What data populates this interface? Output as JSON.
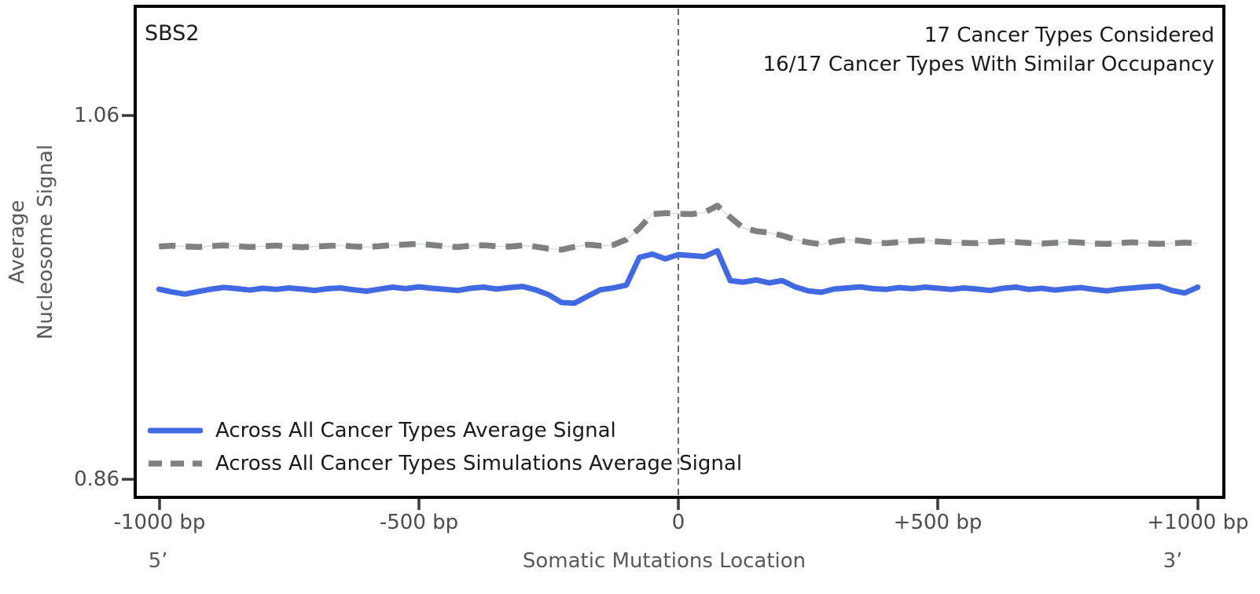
{
  "header": {
    "signature": "SBS2",
    "annotations": [
      "17 Cancer Types Considered",
      "16/17 Cancer Types With Similar Occupancy"
    ]
  },
  "axes": {
    "ylabel": "Average\nNucleosome Signal",
    "xlabel": "Somatic Mutations Location",
    "yticks": [
      "1.06",
      "0.86"
    ],
    "xticks": [
      "-1000 bp",
      "-500 bp",
      "0",
      "+500 bp",
      "+1000 bp"
    ],
    "five_prime": "5’",
    "three_prime": "3’"
  },
  "legend": {
    "items": [
      {
        "label": "Across All Cancer Types Average Signal",
        "color": "#4169E1",
        "dash": ""
      },
      {
        "label": "Across All Cancer Types Simulations Average Signal",
        "color": "#808080",
        "dash": "17 11"
      }
    ]
  },
  "colors": {
    "real_line": "#4169E1",
    "sims_line": "#808080",
    "sims_underline": "#d9e1d9",
    "vline": "#6b6b6b",
    "spine": "#000000",
    "tick": "#3a3a3a"
  },
  "chart_data": {
    "type": "line",
    "title": "SBS2",
    "xlabel": "Somatic Mutations Location",
    "ylabel": "Average Nucleosome Signal",
    "xlim": [
      -1000,
      1000
    ],
    "ytick_values": [
      1.06,
      0.86
    ],
    "xtick_values": [
      -1000,
      -500,
      0,
      500,
      1000
    ],
    "vline_x": 0,
    "grid": false,
    "legend_position": "lower-left",
    "x": [
      -1000,
      -975,
      -950,
      -925,
      -900,
      -875,
      -850,
      -825,
      -800,
      -775,
      -750,
      -725,
      -700,
      -675,
      -650,
      -625,
      -600,
      -575,
      -550,
      -525,
      -500,
      -475,
      -450,
      -425,
      -400,
      -375,
      -350,
      -325,
      -300,
      -275,
      -250,
      -225,
      -200,
      -175,
      -150,
      -125,
      -100,
      -75,
      -50,
      -25,
      0,
      25,
      50,
      75,
      100,
      125,
      150,
      175,
      200,
      225,
      250,
      275,
      300,
      325,
      350,
      375,
      400,
      425,
      450,
      475,
      500,
      525,
      550,
      575,
      600,
      625,
      650,
      675,
      700,
      725,
      750,
      775,
      800,
      825,
      850,
      875,
      900,
      925,
      950,
      975,
      1000
    ],
    "series": [
      {
        "name": "Across All Cancer Types Average Signal",
        "color": "#4169E1",
        "style": "solid",
        "values": [
          0.9645,
          0.963,
          0.9618,
          0.9632,
          0.9645,
          0.9655,
          0.9648,
          0.964,
          0.965,
          0.9644,
          0.9652,
          0.9646,
          0.9638,
          0.9648,
          0.9652,
          0.9642,
          0.9634,
          0.9646,
          0.9656,
          0.9648,
          0.9658,
          0.965,
          0.9644,
          0.9638,
          0.965,
          0.9656,
          0.9646,
          0.9654,
          0.966,
          0.9642,
          0.9615,
          0.9572,
          0.9568,
          0.9606,
          0.9642,
          0.9652,
          0.9668,
          0.982,
          0.9838,
          0.9812,
          0.9835,
          0.983,
          0.9824,
          0.9856,
          0.9692,
          0.9684,
          0.9696,
          0.968,
          0.9692,
          0.9658,
          0.9636,
          0.9628,
          0.9646,
          0.9652,
          0.9658,
          0.9648,
          0.9644,
          0.9654,
          0.9648,
          0.9656,
          0.965,
          0.9644,
          0.9652,
          0.9646,
          0.9638,
          0.965,
          0.9656,
          0.9644,
          0.965,
          0.964,
          0.9648,
          0.9654,
          0.9644,
          0.9636,
          0.9646,
          0.9652,
          0.9658,
          0.9662,
          0.9638,
          0.9624,
          0.9656
        ]
      },
      {
        "name": "Across All Cancer Types Simulations Average Signal",
        "color": "#808080",
        "style": "dashed",
        "values": [
          0.988,
          0.9884,
          0.988,
          0.9877,
          0.9882,
          0.9886,
          0.9881,
          0.9877,
          0.9881,
          0.9885,
          0.988,
          0.9876,
          0.988,
          0.9883,
          0.9886,
          0.988,
          0.9877,
          0.9882,
          0.9887,
          0.9891,
          0.9894,
          0.9888,
          0.9881,
          0.9877,
          0.9884,
          0.9887,
          0.9881,
          0.9879,
          0.9886,
          0.9879,
          0.9868,
          0.9862,
          0.9878,
          0.989,
          0.9884,
          0.9889,
          0.9918,
          0.998,
          1.0058,
          1.0063,
          1.006,
          1.0058,
          1.0066,
          1.0104,
          1.004,
          0.9982,
          0.9964,
          0.9956,
          0.994,
          0.9918,
          0.9902,
          0.9892,
          0.9908,
          0.9918,
          0.9912,
          0.9902,
          0.9898,
          0.9904,
          0.991,
          0.9913,
          0.9907,
          0.9903,
          0.99,
          0.9898,
          0.9904,
          0.9908,
          0.9904,
          0.9899,
          0.9896,
          0.99,
          0.9905,
          0.9901,
          0.9896,
          0.9894,
          0.9899,
          0.9903,
          0.9897,
          0.9894,
          0.9897,
          0.9901,
          0.9897
        ]
      }
    ]
  }
}
